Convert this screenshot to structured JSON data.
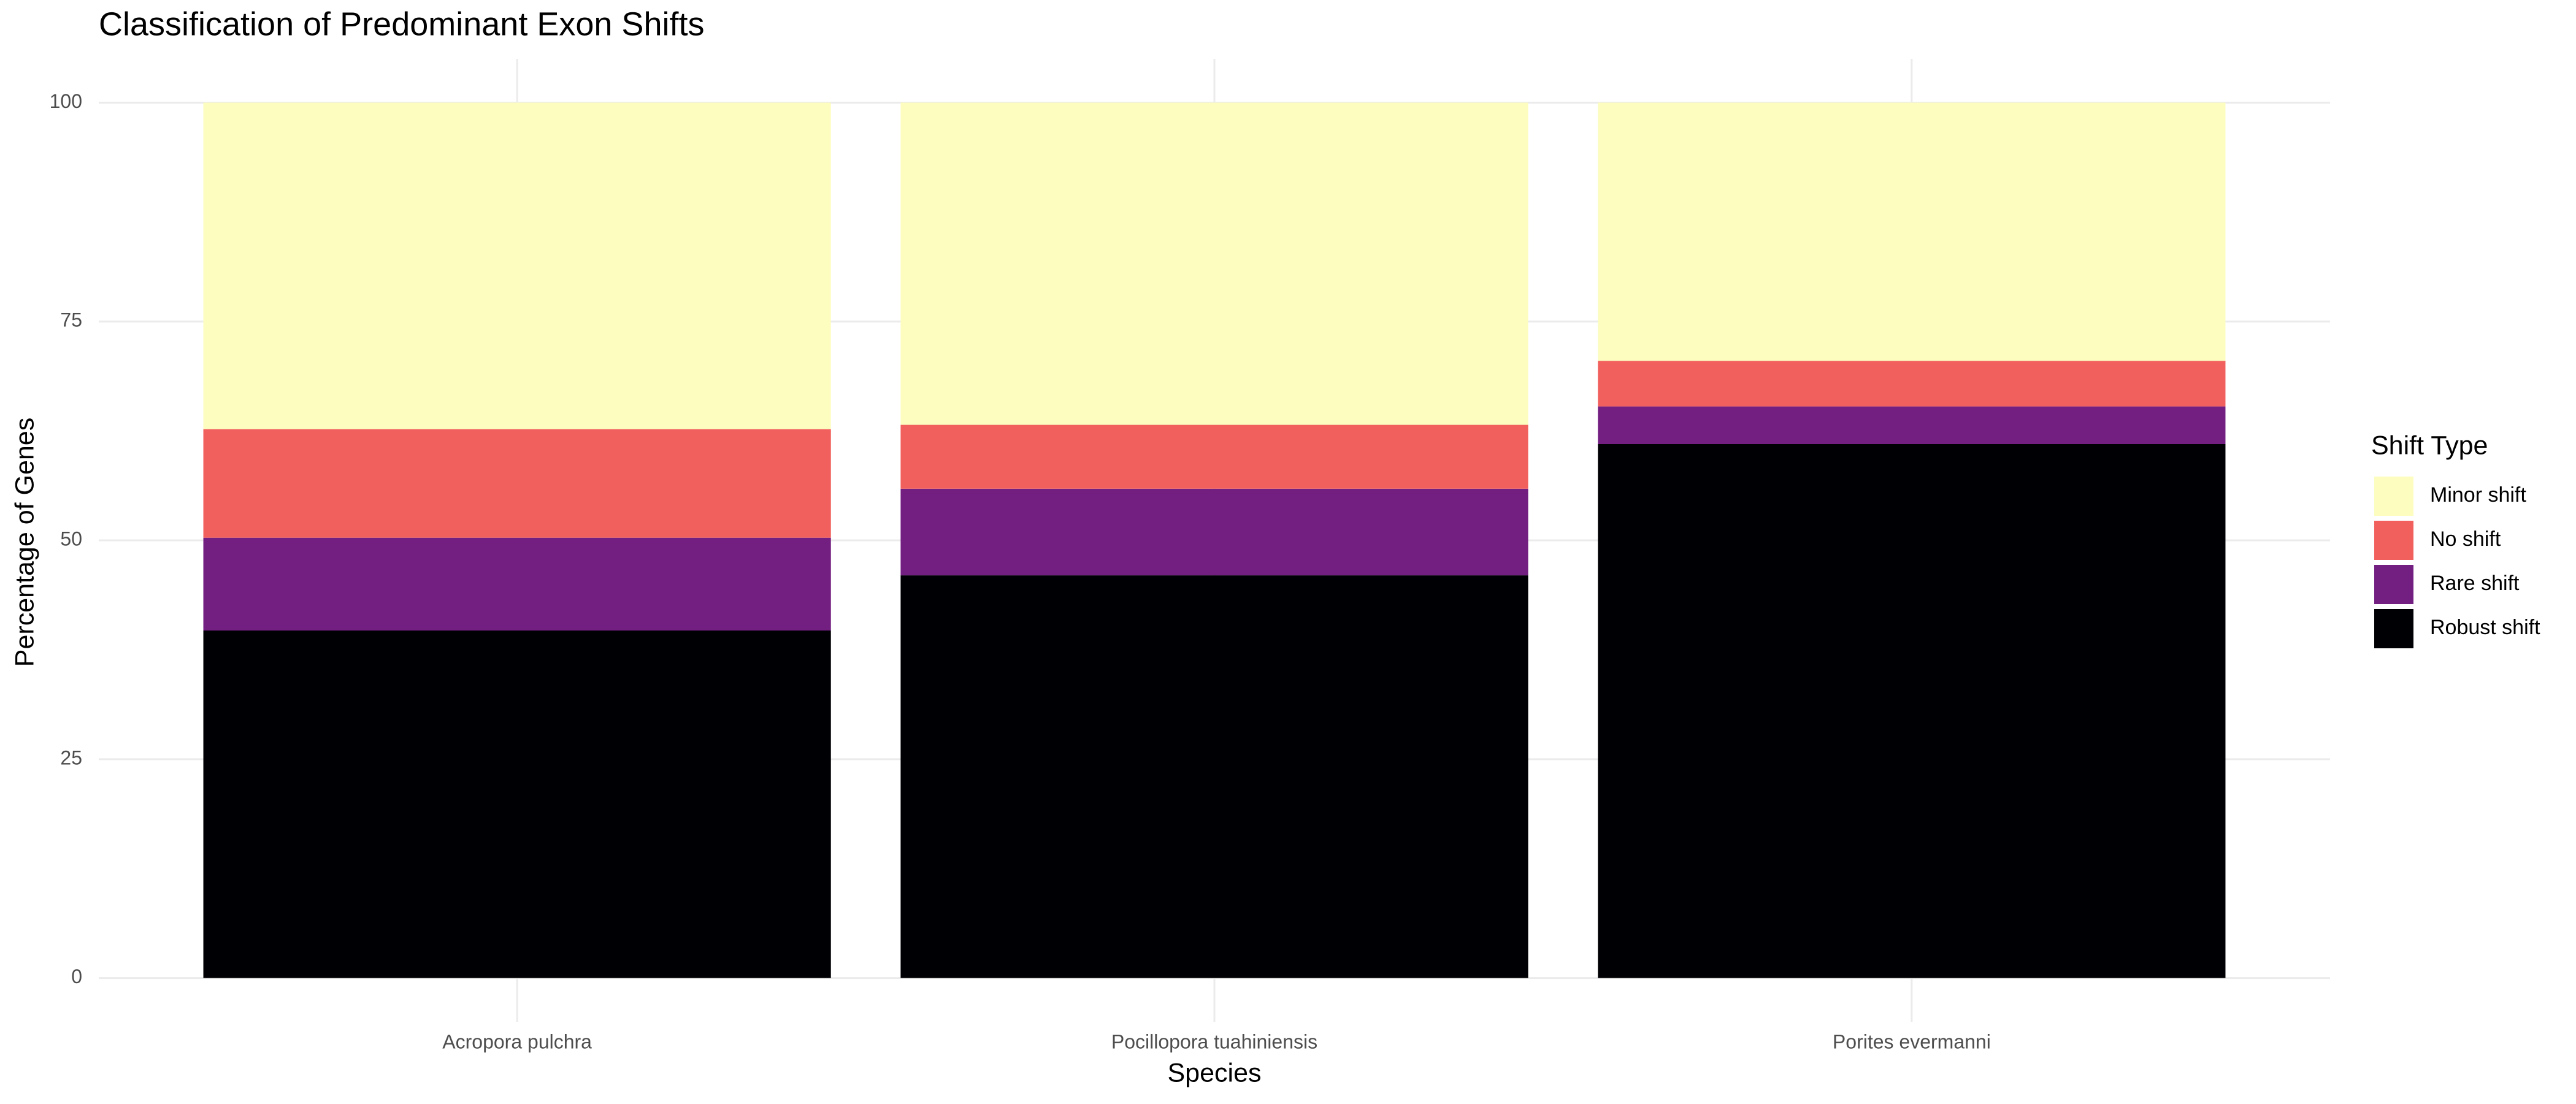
{
  "chart_data": {
    "type": "stacked-bar",
    "title": "Classification of Predominant Exon Shifts",
    "x_label": "Species",
    "y_label": "Percentage of Genes",
    "legend_title": "Shift Type",
    "categories": [
      "Acropora pulchra",
      "Pocillopora tuahiniensis",
      "Porites evermanni"
    ],
    "series": [
      {
        "name": "Minor shift",
        "color": "#fcfdbf",
        "values": [
          37.3,
          36.8,
          29.5
        ]
      },
      {
        "name": "No shift",
        "color": "#f1605d",
        "values": [
          12.4,
          7.3,
          5.2
        ]
      },
      {
        "name": "Rare shift",
        "color": "#721f81",
        "values": [
          10.6,
          9.9,
          4.3
        ]
      },
      {
        "name": "Robust shift",
        "color": "#000004",
        "values": [
          39.7,
          46.0,
          61.0
        ]
      }
    ],
    "ylim": [
      -5,
      105
    ],
    "yticks": [
      0,
      25,
      50,
      75,
      100
    ],
    "grid": true,
    "legend": "right"
  }
}
